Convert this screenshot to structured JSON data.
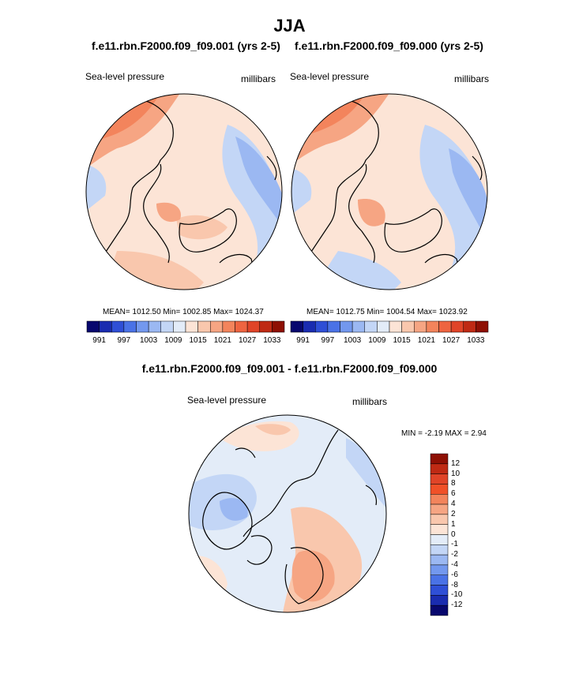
{
  "title": "JJA",
  "panels": [
    {
      "title": "f.e11.rbn.F2000.f09_f09.001 (yrs 2-5)",
      "left_label": "Sea-level pressure",
      "right_label": "millibars",
      "stats": "MEAN= 1012.50  Min= 1002.85  Max= 1024.37"
    },
    {
      "title": "f.e11.rbn.F2000.f09_f09.000 (yrs 2-5)",
      "left_label": "Sea-level pressure",
      "right_label": "millibars",
      "stats": "MEAN= 1012.75  Min= 1004.54  Max= 1023.92"
    }
  ],
  "colorbar_top": {
    "tick_labels": [
      "991",
      "997",
      "1003",
      "1009",
      "1015",
      "1021",
      "1027",
      "1033"
    ],
    "colors": [
      "#08086e",
      "#1a2cb0",
      "#2f4fd6",
      "#4a72e6",
      "#7398ee",
      "#9bb8f2",
      "#c3d6f6",
      "#e3ecf8",
      "#fce4d6",
      "#f9c7ad",
      "#f6a583",
      "#f3845c",
      "#ee6440",
      "#e04428",
      "#bf2a14",
      "#8e1004"
    ]
  },
  "difference": {
    "title": "f.e11.rbn.F2000.f09_f09.001 - f.e11.rbn.F2000.f09_f09.000",
    "left_label": "Sea-level pressure",
    "right_label": "millibars",
    "minmax": "MIN =  -2.19 MAX =   2.94",
    "colorbar": {
      "tick_labels": [
        "12",
        "10",
        "8",
        "6",
        "4",
        "2",
        "1",
        "0",
        "-1",
        "-2",
        "-4",
        "-6",
        "-8",
        "-10",
        "-12"
      ],
      "colors": [
        "#8e1004",
        "#bf2a14",
        "#e04428",
        "#f05028",
        "#f3845c",
        "#f6a583",
        "#f9c7ad",
        "#fce4d6",
        "#e3ecf8",
        "#c3d6f6",
        "#9bb8f2",
        "#7398ee",
        "#4a72e6",
        "#2f4fd6",
        "#1a2cb0",
        "#08086e"
      ]
    }
  },
  "colors": {
    "land_outline": "#000000",
    "ocean_light": "#fce4d6",
    "ocean_blue": "#c3d6f6"
  }
}
